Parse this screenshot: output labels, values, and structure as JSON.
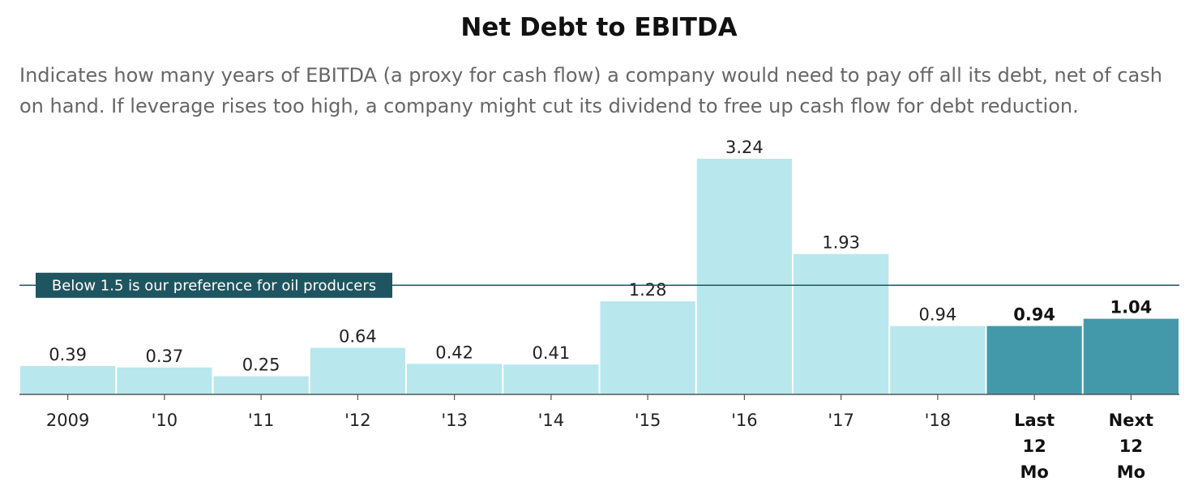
{
  "chart_data": {
    "type": "bar",
    "title": "Net Debt to EBITDA",
    "subtitle": "Indicates how many years of EBITDA (a proxy for cash flow) a company would need to pay off all its debt, net of cash on hand. If leverage rises too high, a company might cut its dividend to free up cash flow for debt reduction.",
    "categories": [
      "2009",
      "'10",
      "'11",
      "'12",
      "'13",
      "'14",
      "'15",
      "'16",
      "'17",
      "'18",
      "Last 12 Mo",
      "Next 12 Mo"
    ],
    "values": [
      0.39,
      0.37,
      0.25,
      0.64,
      0.42,
      0.41,
      1.28,
      3.24,
      1.93,
      0.94,
      0.94,
      1.04
    ],
    "value_labels": [
      "0.39",
      "0.37",
      "0.25",
      "0.64",
      "0.42",
      "0.41",
      "1.28",
      "3.24",
      "1.93",
      "0.94",
      "0.94",
      "1.04"
    ],
    "highlighted": [
      false,
      false,
      false,
      false,
      false,
      false,
      false,
      false,
      false,
      false,
      true,
      true
    ],
    "reference_line": {
      "value": 1.5,
      "label": "Below 1.5 is our preference for oil producers"
    },
    "ylim": [
      0,
      3.24
    ],
    "grid": false,
    "legend": "none",
    "colors": {
      "bar": "#b8e7ee",
      "bar_highlight": "#4399a9",
      "reference": "#1f5560",
      "axis": "#555555"
    }
  }
}
